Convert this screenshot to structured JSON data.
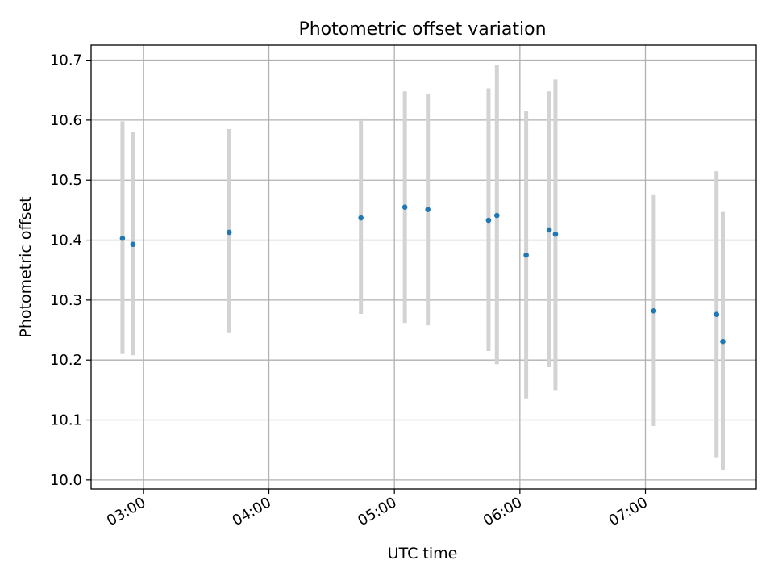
{
  "chart_data": {
    "type": "scatter",
    "title": "Photometric offset variation",
    "xlabel": "UTC time",
    "ylabel": "Photometric offset",
    "xlim": [
      "02:35",
      "07:53"
    ],
    "ylim": [
      9.985,
      10.725
    ],
    "x_ticks": [
      "03:00",
      "04:00",
      "05:00",
      "06:00",
      "07:00"
    ],
    "y_ticks": [
      "10.0",
      "10.1",
      "10.2",
      "10.3",
      "10.4",
      "10.5",
      "10.6",
      "10.7"
    ],
    "grid": true,
    "colors": {
      "points": "#1f77b4",
      "error_bars": "#d3d3d3",
      "grid": "#b0b0b0"
    },
    "points": [
      {
        "x": "02:50",
        "y": 10.403,
        "err_low": 10.21,
        "err_high": 10.598
      },
      {
        "x": "02:55",
        "y": 10.393,
        "err_low": 10.208,
        "err_high": 10.58
      },
      {
        "x": "03:41",
        "y": 10.413,
        "err_low": 10.245,
        "err_high": 10.585
      },
      {
        "x": "04:44",
        "y": 10.437,
        "err_low": 10.277,
        "err_high": 10.6
      },
      {
        "x": "05:05",
        "y": 10.455,
        "err_low": 10.262,
        "err_high": 10.648
      },
      {
        "x": "05:16",
        "y": 10.451,
        "err_low": 10.258,
        "err_high": 10.643
      },
      {
        "x": "05:45",
        "y": 10.433,
        "err_low": 10.215,
        "err_high": 10.653
      },
      {
        "x": "05:49",
        "y": 10.441,
        "err_low": 10.193,
        "err_high": 10.692
      },
      {
        "x": "06:03",
        "y": 10.375,
        "err_low": 10.136,
        "err_high": 10.615
      },
      {
        "x": "06:14",
        "y": 10.417,
        "err_low": 10.188,
        "err_high": 10.648
      },
      {
        "x": "06:17",
        "y": 10.41,
        "err_low": 10.15,
        "err_high": 10.668
      },
      {
        "x": "07:04",
        "y": 10.282,
        "err_low": 10.09,
        "err_high": 10.475
      },
      {
        "x": "07:34",
        "y": 10.276,
        "err_low": 10.038,
        "err_high": 10.515
      },
      {
        "x": "07:37",
        "y": 10.231,
        "err_low": 10.016,
        "err_high": 10.447
      }
    ]
  }
}
